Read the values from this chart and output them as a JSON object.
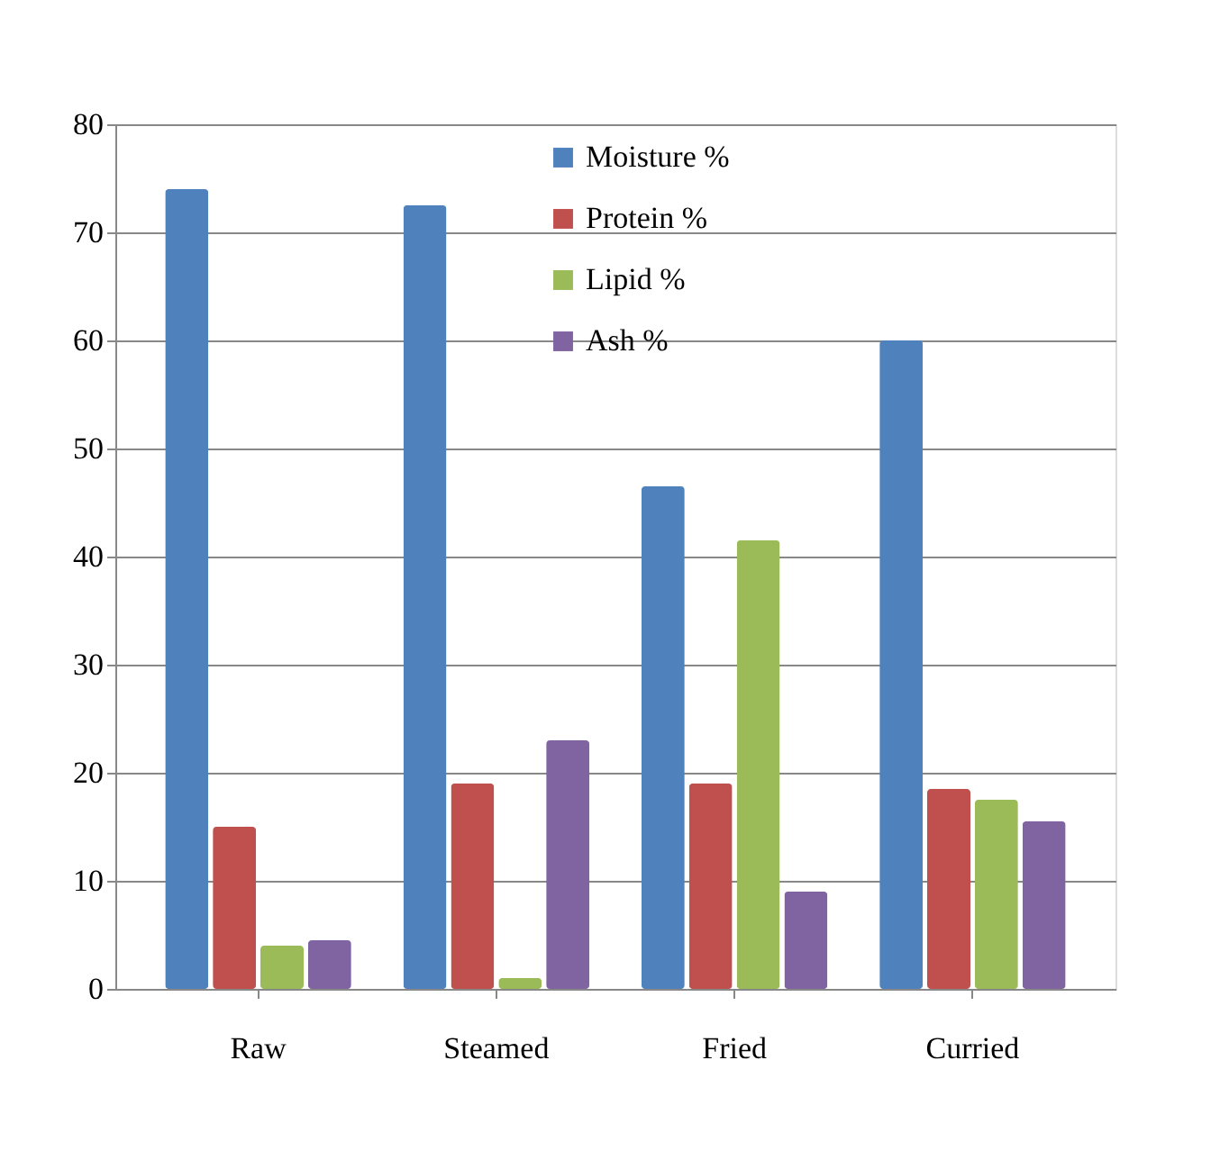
{
  "chart_data": {
    "type": "bar",
    "categories": [
      "Raw",
      "Steamed",
      "Fried",
      "Curried"
    ],
    "series": [
      {
        "name": "Moisture %",
        "color": "#4f81bd",
        "values": [
          74,
          72.5,
          46.5,
          60
        ]
      },
      {
        "name": "Protein %",
        "color": "#c0504d",
        "values": [
          15,
          19,
          19,
          18.5
        ]
      },
      {
        "name": "Lipid %",
        "color": "#9bbb59",
        "values": [
          4,
          1,
          41.5,
          17.5
        ]
      },
      {
        "name": "Ash %",
        "color": "#8064a2",
        "values": [
          4.5,
          23,
          9,
          15.5
        ]
      }
    ],
    "ylim": [
      0,
      80
    ],
    "yticks": [
      0,
      10,
      20,
      30,
      40,
      50,
      60,
      70,
      80
    ],
    "grid": "y",
    "legend": "top"
  }
}
